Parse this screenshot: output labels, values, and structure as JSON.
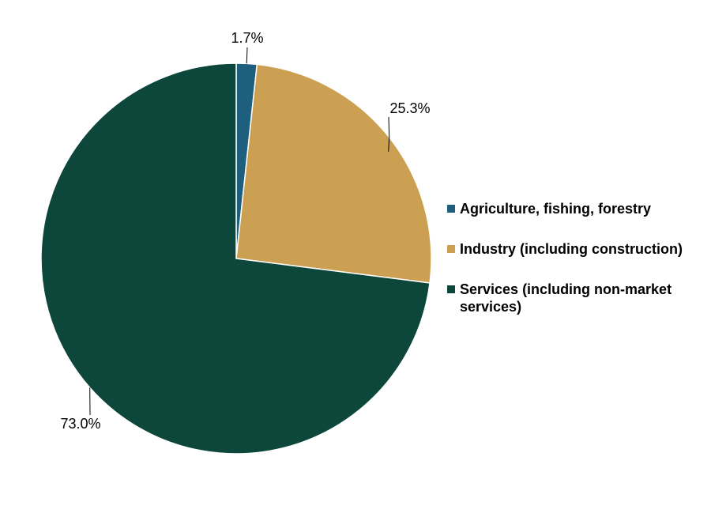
{
  "chart_data": {
    "type": "pie",
    "categories": [
      "Agriculture, fishing, forestry",
      "Industry (including construction)",
      "Services (including non-market services)"
    ],
    "values": [
      1.7,
      25.3,
      73.0
    ],
    "data_labels": [
      "1.7%",
      "25.3%",
      "73.0%"
    ],
    "colors": [
      "#1f5f7e",
      "#cca052",
      "#0d463a"
    ],
    "title": "",
    "legend_position": "right",
    "start_angle": "12 o'clock, clockwise"
  }
}
